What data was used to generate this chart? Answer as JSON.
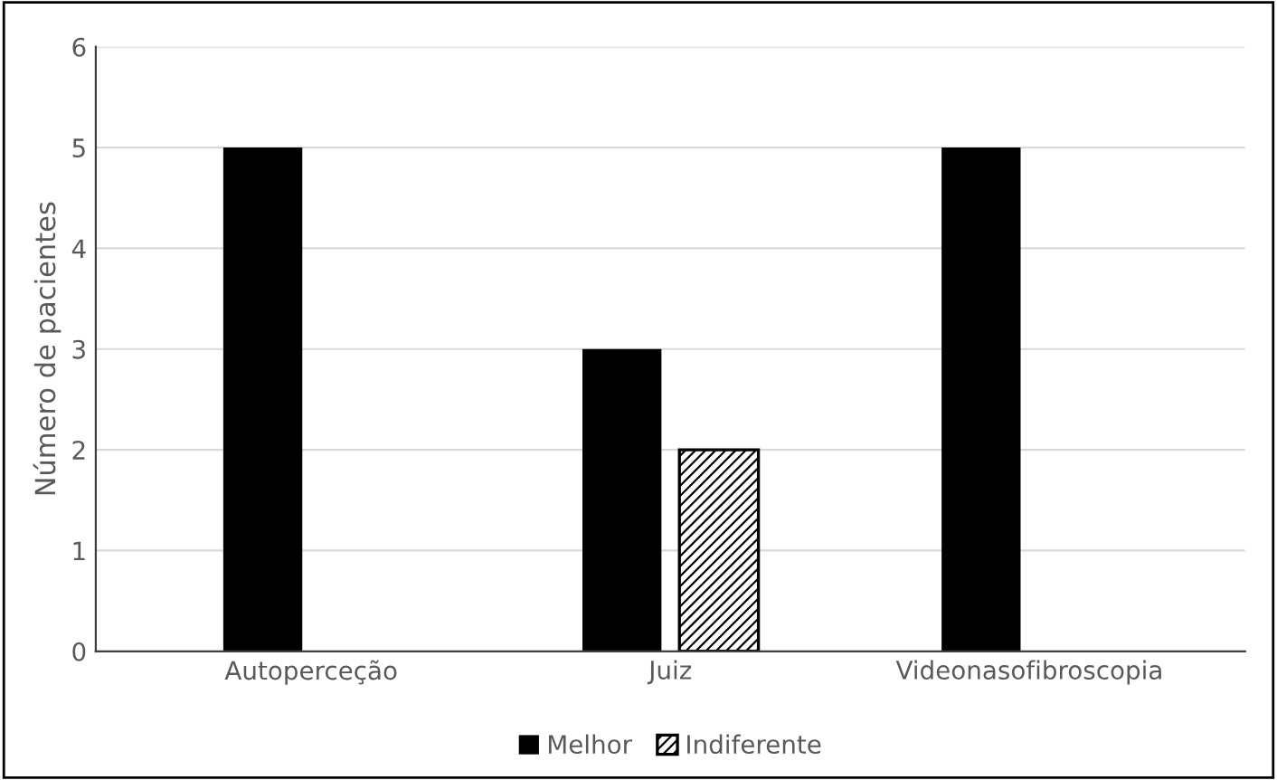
{
  "chart_data": {
    "type": "bar",
    "ylabel": "Número de pacientes",
    "categories": [
      "Autoperceção",
      "Juiz",
      "Videonasofibroscopia"
    ],
    "series": [
      {
        "name": "Melhor",
        "color": "#000000",
        "values": [
          5,
          3,
          5
        ]
      },
      {
        "name": "Indiferente",
        "color": "#000000",
        "values": [
          null,
          2,
          null
        ]
      }
    ],
    "ylim": [
      0,
      6
    ],
    "yticks": [
      0,
      1,
      2,
      3,
      4,
      5,
      6
    ],
    "grid": "y",
    "legend": "bottom"
  }
}
